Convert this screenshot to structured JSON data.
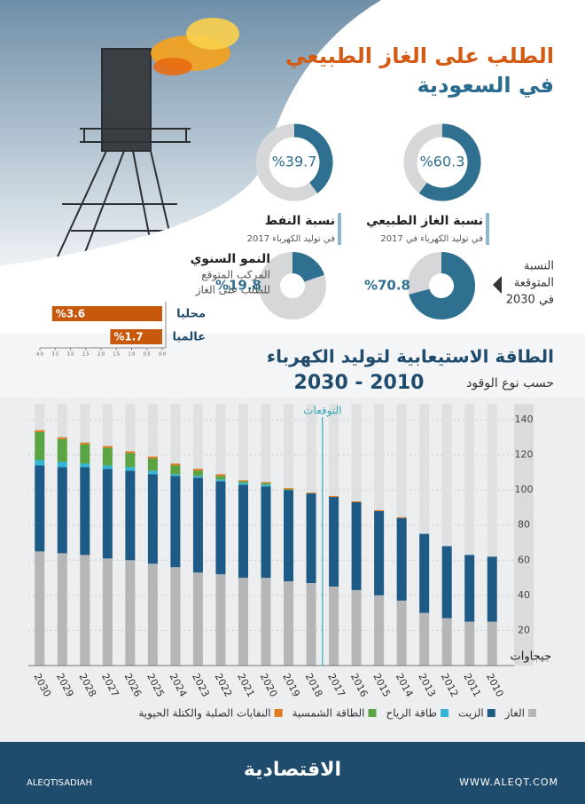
{
  "header": {
    "title_line1": "الطلب على الغاز الطبيعي",
    "title_line2": "في السعودية"
  },
  "annotations": {
    "forecast_2030": [
      "النسبة",
      "المتوقعة",
      "في 2030"
    ]
  },
  "footer": {
    "brand": "الاقتصادية",
    "website": "WWW.ALEQT.COM",
    "handle": "ALEQTISADIAH"
  },
  "chart_data": [
    {
      "type": "pie",
      "title": "نسبة الغاز الطبيعي",
      "subtitle": "في توليد الكهرباء في 2017",
      "values": [
        60.3
      ],
      "value_labels": [
        "%60.3"
      ],
      "color": "#2f6f8f"
    },
    {
      "type": "pie",
      "title": "نسبة النفط",
      "subtitle": "في توليد الكهرباء 2017",
      "values": [
        39.7
      ],
      "value_labels": [
        "%39.7"
      ],
      "color": "#2f6f8f"
    },
    {
      "type": "pie",
      "values": [
        70.8
      ],
      "value_labels": [
        "%70.8"
      ],
      "color": "#2f6f8f"
    },
    {
      "type": "pie",
      "values": [
        19.8
      ],
      "value_labels": [
        "%19.8"
      ],
      "color": "#2f6f8f"
    },
    {
      "type": "hbar",
      "title": "النمو السنوي",
      "subtitle": [
        "المركب المتوقع",
        "للطلب على الغاز"
      ],
      "categories": [
        "محليا",
        "عالميا"
      ],
      "values": [
        3.6,
        1.7
      ],
      "value_labels": [
        "%3.6",
        "%1.7"
      ],
      "color": "#c8580c",
      "xlim": [
        0,
        4
      ],
      "x_reversed": true,
      "xticks": [
        {
          "value": 0,
          "label": "0.0"
        },
        0.5,
        {
          "value": 1,
          "label": "1.0"
        },
        1.5,
        {
          "value": 2,
          "label": "2.0"
        },
        2.5,
        {
          "value": 3,
          "label": "3.0"
        },
        3.5,
        {
          "value": 4,
          "label": "4.0"
        }
      ]
    },
    {
      "type": "stacked_bar",
      "title": "الطاقة الاستيعابية لتوليد الكهرباء",
      "subtitle": "حسب نوع الوقود",
      "period": "2030 - 2010",
      "annotation": "التوقعات",
      "y_label": "جيجاوات",
      "categories": [
        "2030",
        "2029",
        "2028",
        "2027",
        "2026",
        "2025",
        "2024",
        "2023",
        "2022",
        "2021",
        "2020",
        "2019",
        "2018",
        "2017",
        "2016",
        "2015",
        "2014",
        "2013",
        "2012",
        "2011",
        "2010"
      ],
      "series": [
        {
          "name": "الغاز",
          "color": "#b5b6b8",
          "values": [
            65,
            64,
            63,
            61,
            60,
            58,
            56,
            53,
            52,
            50,
            50,
            48,
            47,
            45,
            43,
            40,
            37,
            30,
            27,
            25,
            25
          ]
        },
        {
          "name": "الزيت",
          "color": "#1d5a86",
          "values": [
            49,
            49,
            50,
            51,
            51,
            51,
            52,
            54,
            53,
            53,
            52,
            52,
            51,
            51,
            50,
            48,
            47,
            45,
            41,
            38,
            37
          ]
        },
        {
          "name": "طاقة الرياح",
          "color": "#36b4d6",
          "values": [
            3,
            3,
            2,
            2,
            2,
            2,
            1,
            1,
            1,
            1,
            1,
            0,
            0,
            0,
            0,
            0,
            0,
            0,
            0,
            0,
            0
          ]
        },
        {
          "name": "الطاقة الشمسية",
          "color": "#5aa443",
          "values": [
            16,
            13,
            11,
            10,
            8,
            7,
            5,
            3,
            2,
            1,
            1,
            0.5,
            0,
            0,
            0,
            0,
            0,
            0,
            0,
            0,
            0
          ]
        },
        {
          "name": "النفايات الصلبة والكتلة الحيوية",
          "color": "#e07a1f",
          "values": [
            1,
            1,
            1,
            1,
            1,
            1,
            1,
            1,
            1,
            0.5,
            0.5,
            0.5,
            0.5,
            0.5,
            0.5,
            0.5,
            0.5,
            0,
            0,
            0,
            0
          ]
        }
      ],
      "ylim": [
        0,
        140
      ],
      "yticks": [
        20,
        40,
        60,
        80,
        100,
        120,
        140
      ]
    }
  ]
}
